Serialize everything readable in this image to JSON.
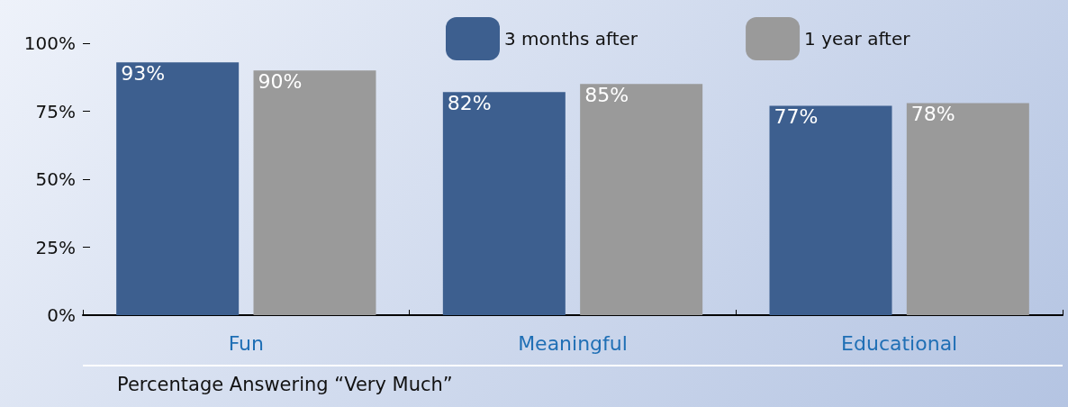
{
  "chart_data": {
    "type": "bar",
    "xlabel": "Percentage Answering “Very Much”",
    "categories": [
      "Fun",
      "Meaningful",
      "Educational"
    ],
    "series": [
      {
        "name": "3 months after",
        "color": "#3d5f8f",
        "values": [
          93,
          82,
          77
        ],
        "value_labels": [
          "93%",
          "82%",
          "77%"
        ]
      },
      {
        "name": "1 year after",
        "color": "#9a9a9a",
        "values": [
          90,
          85,
          78
        ],
        "value_labels": [
          "90%",
          "85%",
          "78%"
        ]
      }
    ],
    "ylim": [
      0,
      100
    ],
    "yticks": [
      {
        "value": 0,
        "label": "0%"
      },
      {
        "value": 25,
        "label": "25%"
      },
      {
        "value": 50,
        "label": "50%"
      },
      {
        "value": 75,
        "label": "75%"
      },
      {
        "value": 100,
        "label": "100%"
      }
    ],
    "grid": false,
    "legend": "top"
  }
}
